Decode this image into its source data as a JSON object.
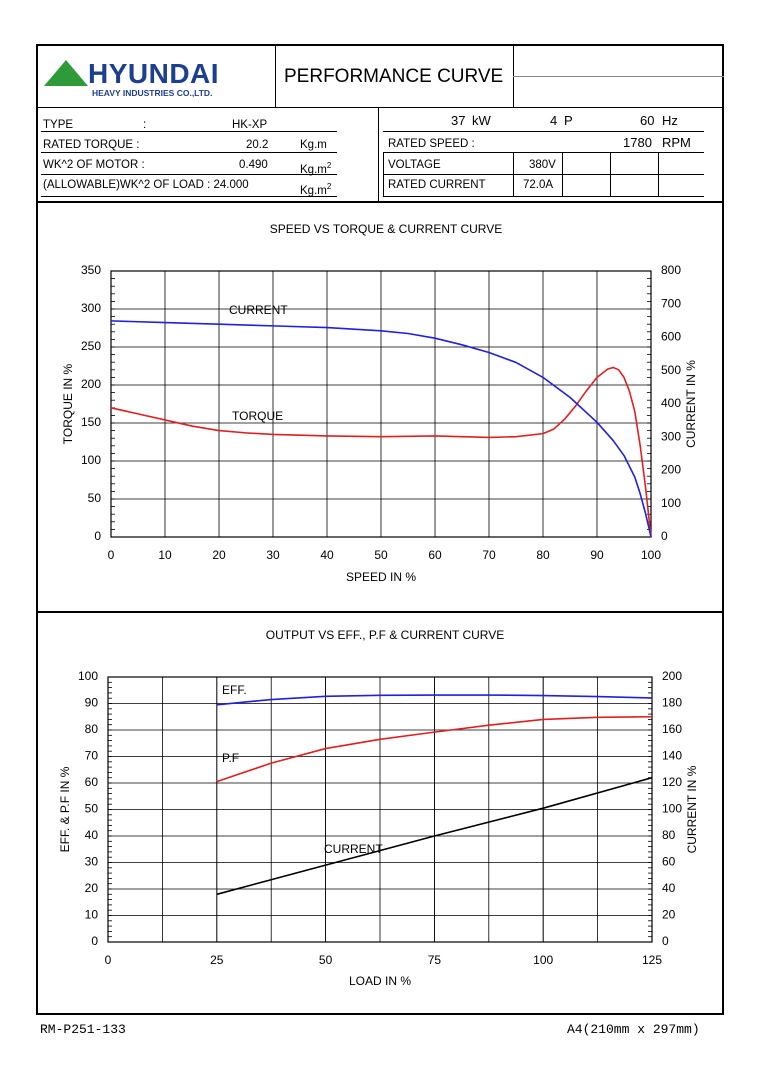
{
  "header": {
    "brand": "HYUNDAI",
    "brand_sub": "HEAVY INDUSTRIES CO.,LTD.",
    "title": "PERFORMANCE CURVE"
  },
  "specs_left": {
    "type_label": "TYPE",
    "type_colon": ":",
    "type_value": "HK-XP",
    "rated_torque_label": "RATED TORQUE :",
    "rated_torque_value": "20.2",
    "rated_torque_unit": "Kg.m",
    "wk_motor_label": "WK^2 OF MOTOR :",
    "wk_motor_value": "0.490",
    "wk_motor_unit": "Kg.m",
    "wk_load_label": "(ALLOWABLE)WK^2 OF LOAD : 24.000",
    "wk_load_unit": "Kg.m",
    "superscript": "2"
  },
  "specs_right": {
    "power_value": "37",
    "power_unit": "kW",
    "poles_value": "4",
    "poles_unit": "P",
    "freq_value": "60",
    "freq_unit": "Hz",
    "rated_speed_label": "RATED SPEED :",
    "rated_speed_value": "1780",
    "rated_speed_unit": "RPM",
    "voltage_label": "VOLTAGE",
    "voltage_value": "380V",
    "rated_current_label": "RATED CURRENT",
    "rated_current_value": "72.0A"
  },
  "footer": {
    "doc_no": "RM-P251-133",
    "paper": "A4(210mm x 297mm)"
  },
  "chart_data": [
    {
      "type": "line",
      "title": "SPEED VS TORQUE & CURRENT CURVE",
      "xlabel": "SPEED IN %",
      "ylabel": "TORQUE IN %",
      "y2label": "CURRENT IN %",
      "xlim": [
        0,
        100
      ],
      "ylim": [
        0,
        350
      ],
      "y2lim": [
        0,
        800
      ],
      "xticks": [
        0,
        10,
        20,
        30,
        40,
        50,
        60,
        70,
        80,
        90,
        100
      ],
      "yticks": [
        0,
        50,
        100,
        150,
        200,
        250,
        300,
        350
      ],
      "y2ticks": [
        0,
        100,
        200,
        300,
        400,
        500,
        600,
        700,
        800
      ],
      "grid": true,
      "series": [
        {
          "name": "TORQUE",
          "axis": "left",
          "color": "#e02020",
          "x": [
            0,
            5,
            10,
            15,
            20,
            25,
            30,
            40,
            50,
            60,
            65,
            70,
            75,
            80,
            82,
            84,
            86,
            88,
            90,
            92,
            93,
            94,
            95,
            96,
            97,
            98,
            99,
            100
          ],
          "y": [
            170,
            162,
            154,
            146,
            140,
            137,
            135,
            133,
            132,
            133,
            132,
            131,
            132,
            136,
            142,
            155,
            172,
            192,
            210,
            221,
            223,
            220,
            210,
            192,
            165,
            120,
            65,
            0
          ]
        },
        {
          "name": "CURRENT",
          "axis": "right",
          "color": "#2020e0",
          "x": [
            0,
            10,
            20,
            30,
            40,
            50,
            55,
            60,
            65,
            70,
            75,
            80,
            85,
            90,
            93,
            95,
            97,
            98,
            99,
            100
          ],
          "y": [
            650,
            645,
            640,
            635,
            630,
            620,
            612,
            598,
            578,
            555,
            525,
            480,
            420,
            345,
            290,
            245,
            180,
            130,
            70,
            0
          ]
        }
      ],
      "annotations": [
        "CURRENT",
        "TORQUE"
      ]
    },
    {
      "type": "line",
      "title": "OUTPUT VS EFF., P.F & CURRENT CURVE",
      "xlabel": "LOAD IN %",
      "ylabel": "EFF. & P.F IN %",
      "y2label": "CURRENT IN %",
      "xlim": [
        0,
        125
      ],
      "ylim": [
        0,
        100
      ],
      "y2lim": [
        0,
        200
      ],
      "xticks": [
        0,
        25,
        50,
        75,
        100,
        125
      ],
      "yticks": [
        0,
        10,
        20,
        30,
        40,
        50,
        60,
        70,
        80,
        90,
        100
      ],
      "y2ticks": [
        0,
        20,
        40,
        60,
        80,
        100,
        120,
        140,
        160,
        180,
        200
      ],
      "grid": true,
      "series": [
        {
          "name": "EFF.",
          "axis": "left",
          "color": "#2020e0",
          "x": [
            25,
            37.5,
            50,
            62.5,
            75,
            87.5,
            100,
            112.5,
            125
          ],
          "y": [
            89.5,
            91.5,
            92.7,
            93.1,
            93.2,
            93.2,
            93.0,
            92.6,
            92.1
          ]
        },
        {
          "name": "P.F",
          "axis": "left",
          "color": "#e02020",
          "x": [
            25,
            37.5,
            50,
            62.5,
            75,
            87.5,
            100,
            112.5,
            125
          ],
          "y": [
            60.5,
            67.5,
            73.0,
            76.5,
            79.2,
            81.8,
            84.0,
            84.8,
            85.0
          ]
        },
        {
          "name": "CURRENT",
          "axis": "right",
          "color": "#000000",
          "x": [
            25,
            50,
            75,
            100,
            125
          ],
          "y": [
            36,
            58,
            80,
            101,
            124
          ]
        }
      ],
      "annotations": [
        "EFF.",
        "P.F",
        "CURRENT"
      ]
    }
  ]
}
